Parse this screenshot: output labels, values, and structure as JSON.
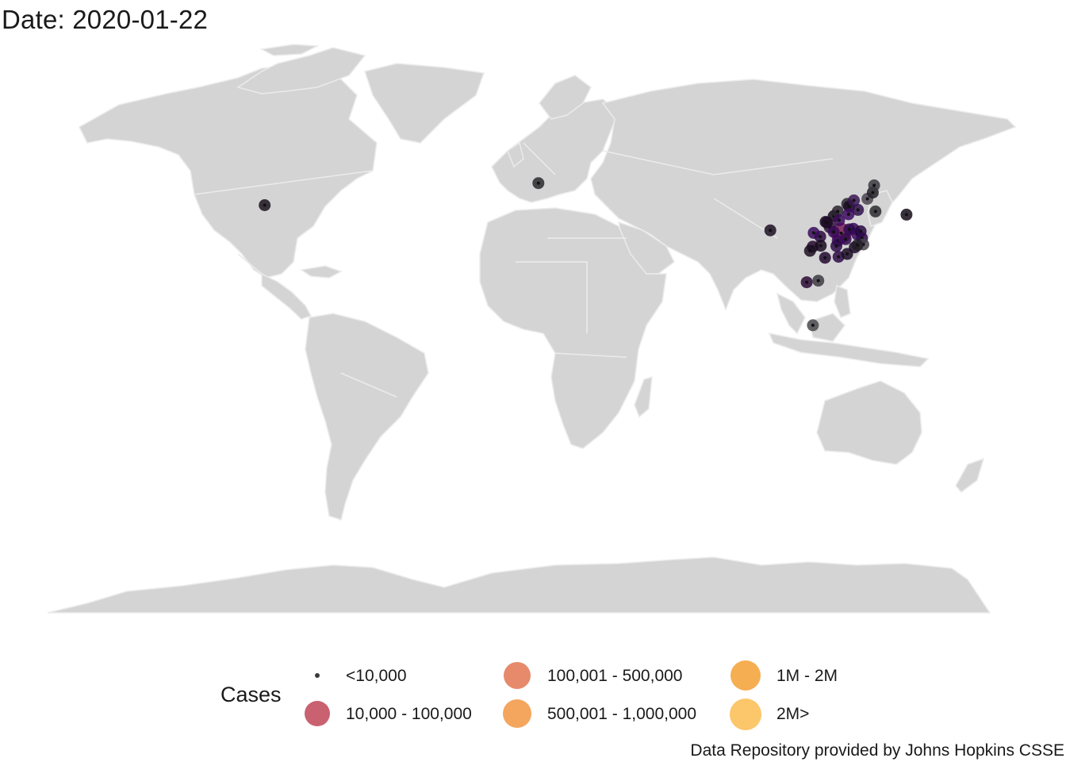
{
  "title": "Date: 2020-01-22",
  "legend": {
    "title": "Cases",
    "items": [
      {
        "label": "<10,000",
        "color": "#3a3a3a"
      },
      {
        "label": "10,000 - 100,000",
        "color": "#c96171"
      },
      {
        "label": "100,001 - 500,000",
        "color": "#e78a6c"
      },
      {
        "label": "500,001 - 1,000,000",
        "color": "#f4a65f"
      },
      {
        "label": "1M - 2M",
        "color": "#f6ae52"
      },
      {
        "label": "2M>",
        "color": "#fcc66a"
      }
    ]
  },
  "caption": "Data Repository provided by Johns Hopkins CSSE",
  "map_style": {
    "land": "#d4d4d4",
    "borders": "#ebebeb",
    "background": "#ffffff"
  },
  "chart_data": {
    "type": "scatter",
    "projection": "equirectangular",
    "x_label": "longitude",
    "y_label": "latitude",
    "xlim": [
      -180,
      180
    ],
    "ylim": [
      -90,
      84
    ],
    "points": [
      {
        "lon": -99.5,
        "lat": 39.5,
        "size": "<10,000",
        "color": "#1a141c"
      },
      {
        "lon": 2.0,
        "lat": 46.5,
        "size": "<10,000",
        "color": "#2a2a2e"
      },
      {
        "lon": 88.0,
        "lat": 31.5,
        "size": "<10,000",
        "color": "#1d0f23"
      },
      {
        "lon": 111.5,
        "lat": 36.0,
        "size": "<10,000",
        "color": "#140a1a"
      },
      {
        "lon": 113.0,
        "lat": 37.5,
        "size": "<10,000",
        "color": "#2b2530"
      },
      {
        "lon": 116.5,
        "lat": 39.9,
        "size": "<10,000",
        "color": "#2c2630"
      },
      {
        "lon": 117.2,
        "lat": 39.1,
        "size": "<10,000",
        "color": "#1d0f23"
      },
      {
        "lon": 119.0,
        "lat": 41.0,
        "size": "<10,000",
        "color": "#3a1753"
      },
      {
        "lon": 120.5,
        "lat": 38.0,
        "size": "<10,000",
        "color": "#2e0f4a"
      },
      {
        "lon": 124.0,
        "lat": 41.5,
        "size": "<10,000",
        "color": "#4b4550"
      },
      {
        "lon": 126.0,
        "lat": 43.5,
        "size": "<10,000",
        "color": "#222028"
      },
      {
        "lon": 126.5,
        "lat": 45.8,
        "size": "<10,000",
        "color": "#3b3940"
      },
      {
        "lon": 127.0,
        "lat": 37.5,
        "size": "<10,000",
        "color": "#2c2a30"
      },
      {
        "lon": 138.5,
        "lat": 36.5,
        "size": "<10,000",
        "color": "#150c18"
      },
      {
        "lon": 108.5,
        "lat": 34.2,
        "size": "<10,000",
        "color": "#1e1024"
      },
      {
        "lon": 114.3,
        "lat": 30.6,
        "size": "10,000 - 100,000",
        "color": "#7a1f57"
      },
      {
        "lon": 113.5,
        "lat": 34.7,
        "size": "<10,000",
        "color": "#3c0a5a"
      },
      {
        "lon": 117.0,
        "lat": 36.6,
        "size": "<10,000",
        "color": "#3d0b62"
      },
      {
        "lon": 118.8,
        "lat": 32.0,
        "size": "<10,000",
        "color": "#35095a"
      },
      {
        "lon": 117.3,
        "lat": 31.8,
        "size": "<10,000",
        "color": "#2f0a50"
      },
      {
        "lon": 120.2,
        "lat": 30.2,
        "size": "<10,000",
        "color": "#3a0a5e"
      },
      {
        "lon": 121.5,
        "lat": 31.2,
        "size": "<10,000",
        "color": "#27093f"
      },
      {
        "lon": 115.9,
        "lat": 28.7,
        "size": "<10,000",
        "color": "#300a4e"
      },
      {
        "lon": 113.0,
        "lat": 28.2,
        "size": "<10,000",
        "color": "#3b0b5f"
      },
      {
        "lon": 119.3,
        "lat": 26.1,
        "size": "<10,000",
        "color": "#1e0b2a"
      },
      {
        "lon": 113.3,
        "lat": 23.1,
        "size": "<10,000",
        "color": "#2d0a46"
      },
      {
        "lon": 108.3,
        "lat": 22.8,
        "size": "<10,000",
        "color": "#22082f"
      },
      {
        "lon": 106.5,
        "lat": 29.5,
        "size": "<10,000",
        "color": "#2a0940"
      },
      {
        "lon": 104.1,
        "lat": 30.7,
        "size": "<10,000",
        "color": "#3a0b5c"
      },
      {
        "lon": 103.7,
        "lat": 26.3,
        "size": "<10,000",
        "color": "#26082f"
      },
      {
        "lon": 102.7,
        "lat": 25.0,
        "size": "<10,000",
        "color": "#1c0f22"
      },
      {
        "lon": 106.7,
        "lat": 26.6,
        "size": "<10,000",
        "color": "#1a0a20"
      },
      {
        "lon": 101.5,
        "lat": 15.0,
        "size": "<10,000",
        "color": "#2b0a36"
      },
      {
        "lon": 105.8,
        "lat": 15.5,
        "size": "<10,000",
        "color": "#3d3a42"
      },
      {
        "lon": 103.8,
        "lat": 1.35,
        "size": "<10,000",
        "color": "#4a4a4e"
      },
      {
        "lon": 110.0,
        "lat": 32.5,
        "size": "<10,000",
        "color": "#2b1732"
      },
      {
        "lon": 111.5,
        "lat": 31.0,
        "size": "<10,000",
        "color": "#3a0a58"
      },
      {
        "lon": 122.0,
        "lat": 29.0,
        "size": "<10,000",
        "color": "#2f0a4f"
      },
      {
        "lon": 122.5,
        "lat": 27.0,
        "size": "<10,000",
        "color": "#48444c"
      },
      {
        "lon": 120.3,
        "lat": 26.8,
        "size": "<10,000",
        "color": "#241f28"
      },
      {
        "lon": 116.5,
        "lat": 24.0,
        "size": "<10,000",
        "color": "#1b0a24"
      },
      {
        "lon": 109.0,
        "lat": 34.0,
        "size": "<10,000",
        "color": "#1e0a28"
      },
      {
        "lon": 112.5,
        "lat": 26.5,
        "size": "<10,000",
        "color": "#2d0a48"
      }
    ]
  }
}
